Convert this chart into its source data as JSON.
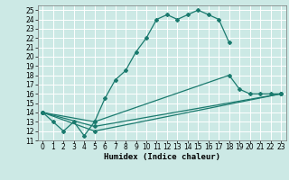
{
  "xlabel": "Humidex (Indice chaleur)",
  "bg_color": "#cce9e5",
  "line_color": "#1a7a6e",
  "grid_color": "#ffffff",
  "xlim": [
    -0.5,
    23.5
  ],
  "ylim": [
    11,
    25.5
  ],
  "xticks": [
    0,
    1,
    2,
    3,
    4,
    5,
    6,
    7,
    8,
    9,
    10,
    11,
    12,
    13,
    14,
    15,
    16,
    17,
    18,
    19,
    20,
    21,
    22,
    23
  ],
  "yticks": [
    11,
    12,
    13,
    14,
    15,
    16,
    17,
    18,
    19,
    20,
    21,
    22,
    23,
    24,
    25
  ],
  "line1_x": [
    0,
    1,
    2,
    3,
    4,
    5,
    6,
    7,
    8,
    9,
    10,
    11,
    12,
    13,
    14,
    15,
    16,
    17,
    18
  ],
  "line1_y": [
    14,
    13,
    12,
    13,
    11.5,
    13,
    15.5,
    17.5,
    18.5,
    20.5,
    22,
    24,
    24.5,
    24,
    24.5,
    25,
    24.5,
    24,
    21.5
  ],
  "line2_x": [
    0,
    5,
    18,
    19,
    20,
    21,
    22,
    23
  ],
  "line2_y": [
    14,
    13,
    18,
    16.5,
    16,
    16,
    16,
    16
  ],
  "line3_x": [
    0,
    5,
    23
  ],
  "line3_y": [
    14,
    12,
    16
  ],
  "line4_x": [
    0,
    5,
    23
  ],
  "line4_y": [
    14,
    12.5,
    16
  ],
  "tick_fontsize": 5.5,
  "label_fontsize": 6.5
}
